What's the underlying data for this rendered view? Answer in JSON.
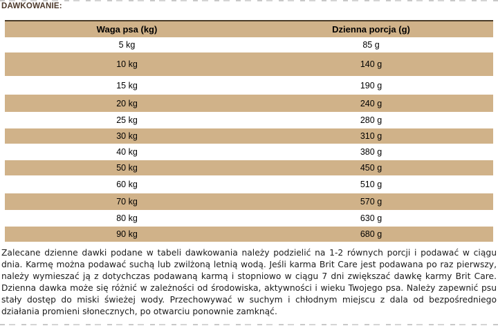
{
  "page": {
    "title": "DAWKOWANIE:"
  },
  "table": {
    "columns": [
      "Waga psa (kg)",
      "Dzienna porcja (g)"
    ],
    "rows": [
      {
        "weight": "5 kg",
        "portion": "85 g"
      },
      {
        "weight": "10 kg",
        "portion": "140 g"
      },
      {
        "weight": "15 kg",
        "portion": "190 g"
      },
      {
        "weight": "20 kg",
        "portion": "240 g"
      },
      {
        "weight": "25 kg",
        "portion": "280 g"
      },
      {
        "weight": "30 kg",
        "portion": "310 g"
      },
      {
        "weight": "40 kg",
        "portion": "380 g"
      },
      {
        "weight": "50 kg",
        "portion": "450 g"
      },
      {
        "weight": "60 kg",
        "portion": "510 g"
      },
      {
        "weight": "70 kg",
        "portion": "570 g"
      },
      {
        "weight": "80 kg",
        "portion": "630 g"
      },
      {
        "weight": "90 kg",
        "portion": "680 g"
      }
    ]
  },
  "notes": {
    "text": "Zalecane dzienne dawki podane w tabeli dawkowania należy podzielić na 1-2 równych porcji i podawać w ciągu dnia. Karmę można podawać suchą lub zwilżoną letnią wodą. Jeśli karma Brit Care jest podawana po raz pierwszy, należy wymieszać ją z dotychczas podawaną karmą i stopniowo w ciągu 7 dni zwiększać dawkę karmy Brit Care. Dzienna dawka może się różnić w zależności od środowiska, aktywności i wieku Twojego psa. Należy zapewnić psu stały dostęp do miski świeżej wody. Przechowywać w suchym i chłodnym miejscu z dala od bezpośredniego działania promieni słonecznych, po otwarciu ponownie zamknąć."
  },
  "colors": {
    "row_tan": "#d0b289",
    "row_white": "#ffffff",
    "header_border_brown": "#4a3b28",
    "title_brown": "#4b382a",
    "body_text": "#1b1b1b"
  }
}
